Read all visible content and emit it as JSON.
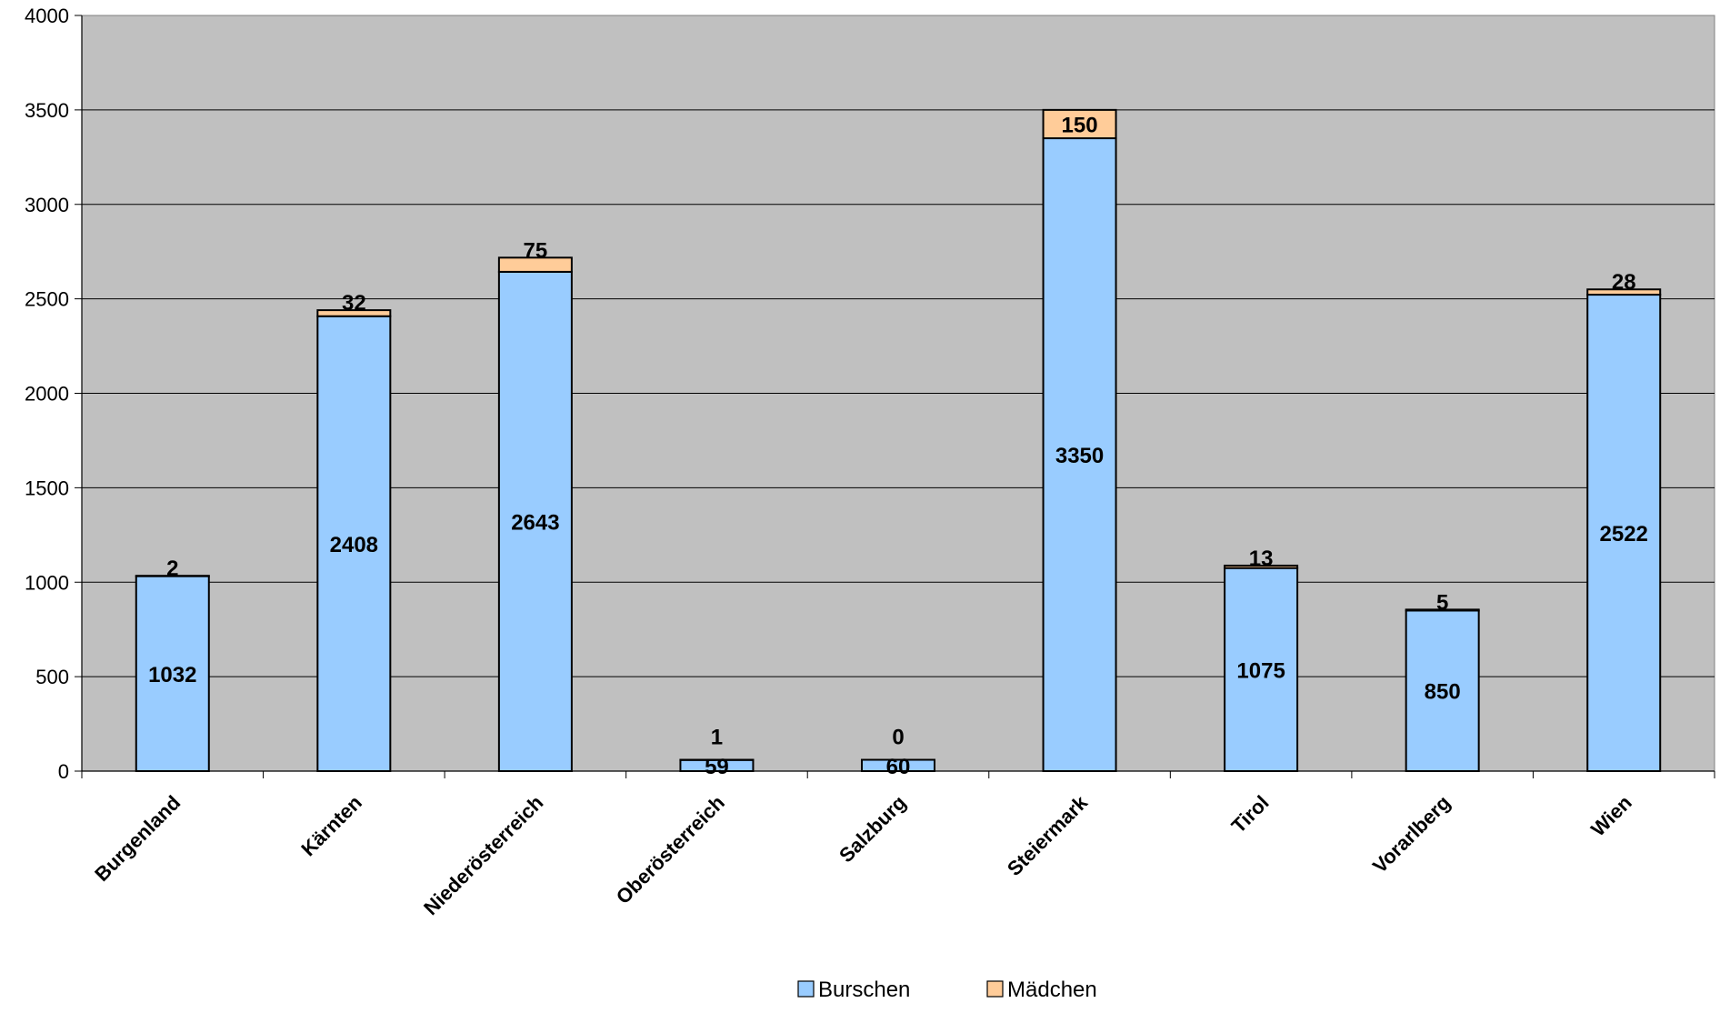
{
  "chart_data": {
    "type": "bar",
    "stacked": true,
    "categories": [
      "Burgenland",
      "Kärnten",
      "Niederösterreich",
      "Oberösterreich",
      "Salzburg",
      "Steiermark",
      "Tirol",
      "Vorarlberg",
      "Wien"
    ],
    "series": [
      {
        "name": "Burschen",
        "color": "#99ccff",
        "values": [
          1032,
          2408,
          2643,
          59,
          60,
          3350,
          1075,
          850,
          2522
        ]
      },
      {
        "name": "Mädchen",
        "color": "#ffcc99",
        "values": [
          2,
          32,
          75,
          1,
          0,
          150,
          13,
          5,
          28
        ]
      }
    ],
    "yticks": [
      "0",
      "500",
      "1000",
      "1500",
      "2000",
      "2500",
      "3000",
      "3500",
      "4000"
    ],
    "ylim": [
      0,
      4000
    ],
    "plot_background": "#c0c0c0",
    "grid": true,
    "legend": "bottom-center"
  }
}
